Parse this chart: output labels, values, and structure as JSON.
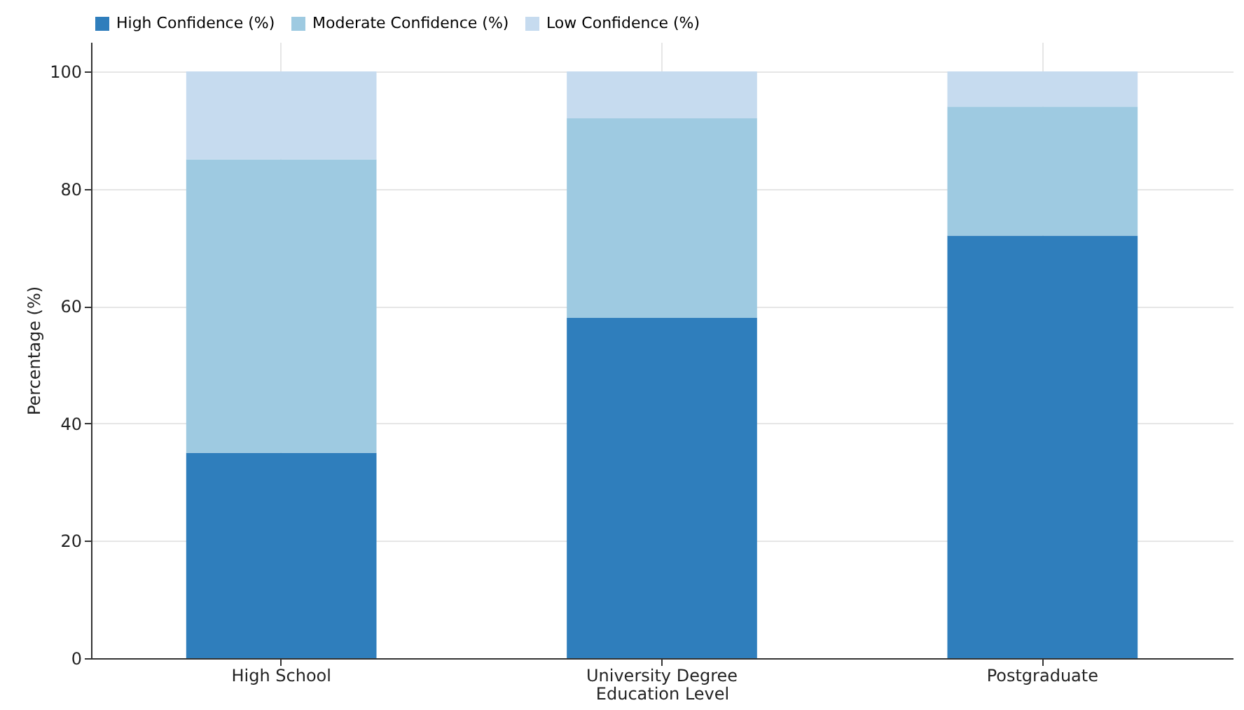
{
  "chart_data": {
    "type": "bar",
    "stacked": true,
    "xlabel": "Education Level",
    "ylabel": "Percentage (%)",
    "categories": [
      "High School",
      "University Degree",
      "Postgraduate"
    ],
    "series": [
      {
        "name": "High Confidence (%)",
        "color": "#2f7ebc",
        "values": [
          35,
          58,
          72
        ]
      },
      {
        "name": "Moderate Confidence (%)",
        "color": "#9ecae1",
        "values": [
          50,
          34,
          22
        ]
      },
      {
        "name": "Low Confidence (%)",
        "color": "#c6dbef",
        "values": [
          15,
          8,
          6
        ]
      }
    ],
    "ylim": [
      0,
      105
    ],
    "yticks": [
      0,
      20,
      40,
      60,
      80,
      100
    ],
    "grid": true,
    "legend": "top"
  }
}
